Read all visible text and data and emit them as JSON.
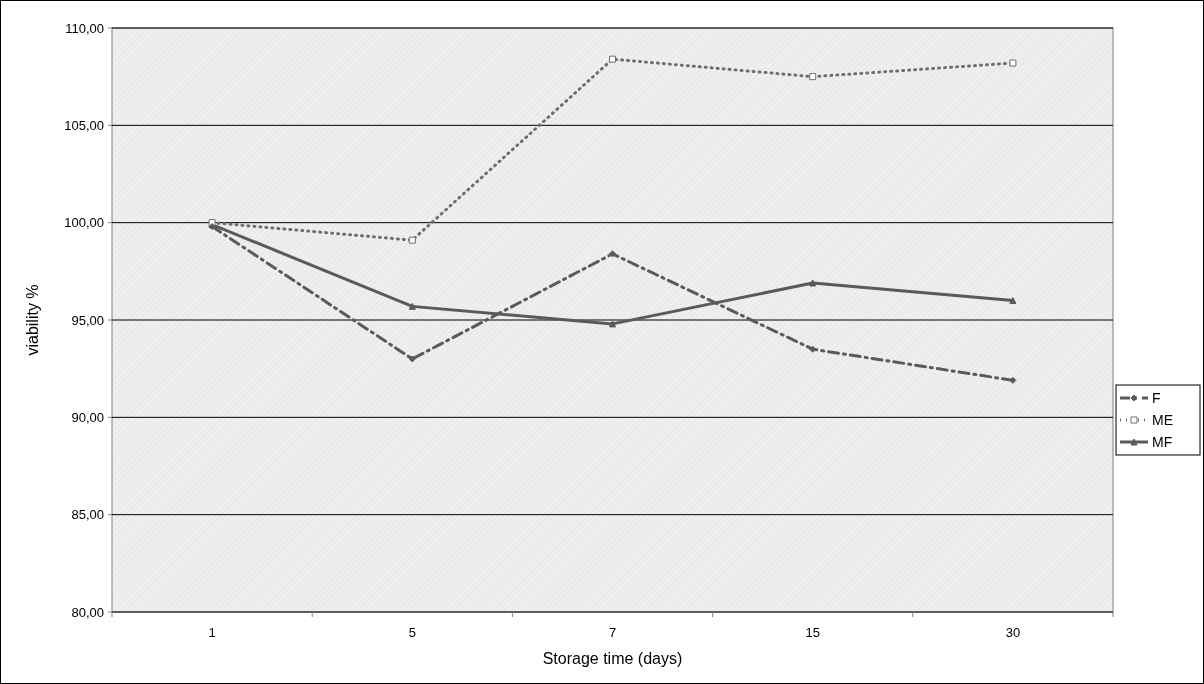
{
  "chart_data": {
    "type": "line",
    "xlabel": "Storage time (days)",
    "ylabel": "viability %",
    "categories": [
      "1",
      "5",
      "7",
      "15",
      "30"
    ],
    "series": [
      {
        "name": "F",
        "color": "#5a5a5a",
        "values": [
          99.8,
          93.0,
          98.4,
          93.5,
          91.9
        ],
        "line_style": "dashdot",
        "marker": "diamond"
      },
      {
        "name": "ME",
        "color": "#6e6e6e",
        "values": [
          100.0,
          99.1,
          108.4,
          107.5,
          108.2
        ],
        "line_style": "dotted",
        "marker": "square"
      },
      {
        "name": "MF",
        "color": "#5a5a5a",
        "values": [
          99.9,
          95.7,
          94.8,
          96.9,
          96.0
        ],
        "line_style": "solid",
        "marker": "triangle"
      }
    ],
    "ylim": [
      80,
      110
    ],
    "yticks": [
      {
        "value": 80,
        "label": "80,00"
      },
      {
        "value": 85,
        "label": "85,00"
      },
      {
        "value": 90,
        "label": "90,00"
      },
      {
        "value": 95,
        "label": "95,00"
      },
      {
        "value": 100,
        "label": "100,00"
      },
      {
        "value": 105,
        "label": "105,00"
      },
      {
        "value": 110,
        "label": "110,00"
      }
    ],
    "grid": "y",
    "legend": "right"
  }
}
